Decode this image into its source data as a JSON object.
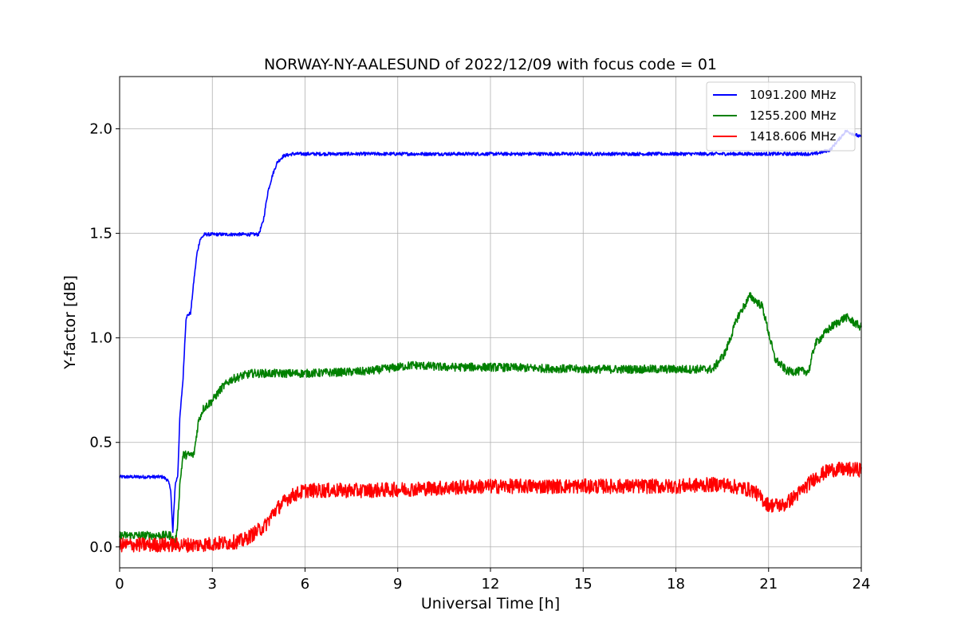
{
  "chart_data": {
    "type": "line",
    "title": "NORWAY-NY-AALESUND of 2022/12/09 with focus code = 01",
    "xlabel": "Universal Time [h]",
    "ylabel": "Y-factor [dB]",
    "xlim": [
      0,
      24
    ],
    "ylim": [
      -0.1,
      2.25
    ],
    "xticks": [
      0,
      3,
      6,
      9,
      12,
      15,
      18,
      21,
      24
    ],
    "yticks": [
      0.0,
      0.5,
      1.0,
      1.5,
      2.0
    ],
    "xtick_labels": [
      "0",
      "3",
      "6",
      "9",
      "12",
      "15",
      "18",
      "21",
      "24"
    ],
    "ytick_labels": [
      "0.0",
      "0.5",
      "1.0",
      "1.5",
      "2.0"
    ],
    "grid": true,
    "legend_position": "top-right",
    "series": [
      {
        "name": "1091.200 MHz",
        "color": "#0000ff",
        "x": [
          0,
          1.4,
          1.55,
          1.65,
          1.72,
          1.8,
          1.88,
          1.95,
          2.05,
          2.15,
          2.3,
          2.4,
          2.5,
          2.6,
          2.75,
          3.0,
          4.5,
          4.65,
          4.8,
          4.95,
          5.1,
          5.3,
          5.6,
          6.0,
          9.0,
          12.0,
          15.0,
          18.0,
          21.0,
          22.5,
          23.0,
          23.5,
          24.0
        ],
        "y": [
          0.335,
          0.335,
          0.32,
          0.28,
          0.07,
          0.3,
          0.34,
          0.62,
          0.8,
          1.1,
          1.12,
          1.27,
          1.4,
          1.47,
          1.495,
          1.495,
          1.495,
          1.56,
          1.7,
          1.78,
          1.84,
          1.87,
          1.88,
          1.88,
          1.88,
          1.88,
          1.88,
          1.88,
          1.88,
          1.88,
          1.9,
          1.99,
          1.96
        ],
        "noise": 0.008
      },
      {
        "name": "1255.200 MHz",
        "color": "#008000",
        "x": [
          0,
          1.7,
          1.75,
          1.85,
          1.95,
          2.05,
          2.4,
          2.55,
          2.7,
          3.0,
          3.3,
          3.6,
          4.0,
          4.3,
          6.0,
          8.0,
          9.5,
          10.5,
          12.0,
          15.0,
          18.0,
          19.2,
          19.6,
          20.0,
          20.4,
          20.8,
          21.2,
          21.6,
          22.3,
          22.5,
          23.0,
          23.5,
          24.0
        ],
        "y": [
          0.055,
          0.055,
          0.01,
          0.055,
          0.3,
          0.44,
          0.44,
          0.6,
          0.66,
          0.7,
          0.76,
          0.8,
          0.82,
          0.83,
          0.83,
          0.84,
          0.87,
          0.86,
          0.86,
          0.85,
          0.85,
          0.85,
          0.93,
          1.1,
          1.2,
          1.15,
          0.9,
          0.84,
          0.84,
          0.97,
          1.05,
          1.1,
          1.05
        ],
        "noise": 0.02
      },
      {
        "name": "1418.606 MHz",
        "color": "#ff0000",
        "x": [
          0,
          2.5,
          3.5,
          4.0,
          4.3,
          4.7,
          5.0,
          5.5,
          6.0,
          8.0,
          10.0,
          12.0,
          15.0,
          18.0,
          19.5,
          20.5,
          21.0,
          21.5,
          22.0,
          22.5,
          23.0,
          24.0
        ],
        "y": [
          0.01,
          0.01,
          0.02,
          0.03,
          0.06,
          0.1,
          0.17,
          0.24,
          0.27,
          0.27,
          0.28,
          0.29,
          0.29,
          0.29,
          0.3,
          0.27,
          0.2,
          0.2,
          0.26,
          0.33,
          0.37,
          0.37
        ],
        "noise": 0.035
      }
    ]
  }
}
